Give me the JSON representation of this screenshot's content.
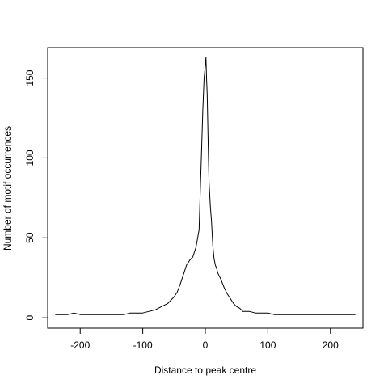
{
  "chart_data": {
    "type": "line",
    "title": "",
    "xlabel": "Distance to peak centre",
    "ylabel": "Number of motif occurrences",
    "xlim": [
      -252,
      252
    ],
    "ylim": [
      -6.5,
      169
    ],
    "xticks": [
      -200,
      -100,
      0,
      100,
      200
    ],
    "xtick_labels": [
      "-200",
      "-100",
      "0",
      "100",
      "200"
    ],
    "yticks": [
      0,
      50,
      100,
      150
    ],
    "ytick_labels": [
      "0",
      "50",
      "100",
      "150"
    ],
    "grid": false,
    "legend": "none",
    "line_color": "#000000",
    "series": [
      {
        "x": [
          -240,
          -230,
          -220,
          -210,
          -200,
          -190,
          -180,
          -170,
          -160,
          -150,
          -140,
          -130,
          -120,
          -110,
          -100,
          -90,
          -80,
          -70,
          -60,
          -55,
          -50,
          -45,
          -40,
          -35,
          -30,
          -25,
          -20,
          -15,
          -10,
          -8,
          -6,
          -4,
          -2,
          0,
          1,
          2,
          3,
          4,
          5,
          6,
          8,
          10,
          12,
          14,
          16,
          18,
          20,
          25,
          30,
          35,
          40,
          45,
          50,
          55,
          60,
          70,
          80,
          90,
          100,
          110,
          120,
          130,
          140,
          150,
          160,
          170,
          180,
          190,
          200,
          210,
          220,
          230,
          240
        ],
        "y": [
          2,
          2,
          2,
          3,
          2,
          2,
          2,
          2,
          2,
          2,
          2,
          2,
          3,
          3,
          3,
          4,
          5,
          7,
          9,
          11,
          13,
          16,
          21,
          27,
          33,
          36,
          38,
          44,
          55,
          80,
          105,
          130,
          150,
          158,
          163,
          150,
          140,
          120,
          100,
          85,
          70,
          60,
          45,
          37,
          33,
          31,
          28,
          24,
          19,
          15,
          12,
          9,
          7,
          6,
          4,
          4,
          3,
          3,
          3,
          2,
          2,
          2,
          2,
          2,
          2,
          2,
          2,
          2,
          2,
          2,
          2,
          2,
          2
        ]
      }
    ]
  }
}
